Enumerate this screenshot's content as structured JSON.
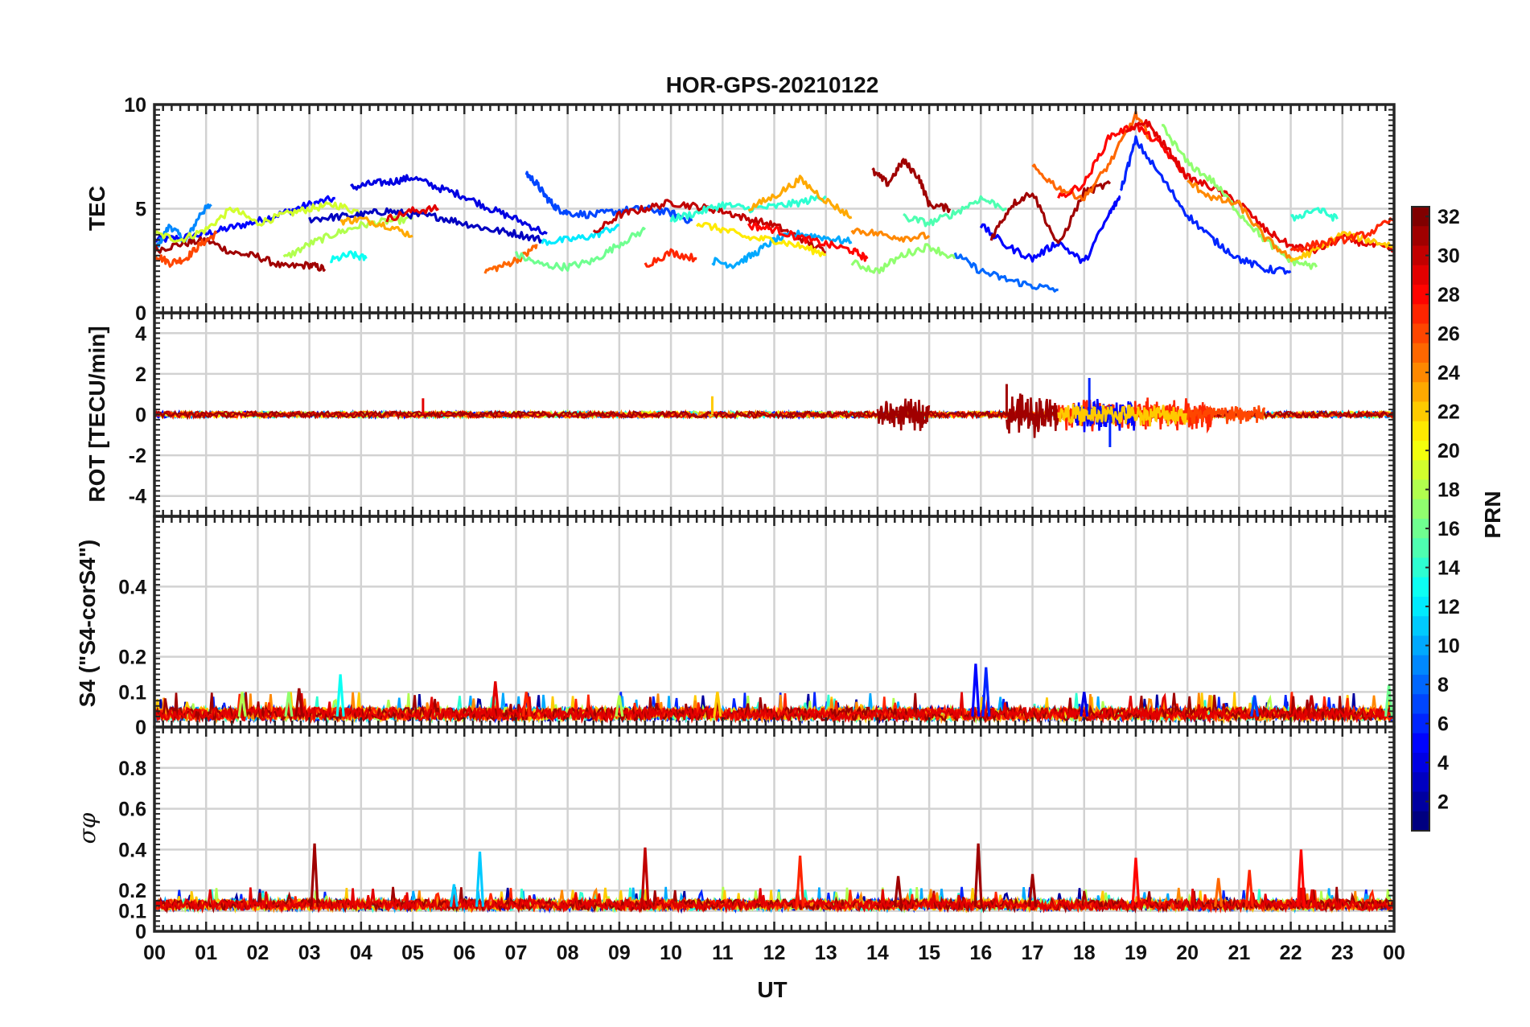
{
  "chart_data": {
    "type": "line",
    "title": "HOR-GPS-20210122",
    "xlabel": "UT",
    "x_ticks": [
      "00",
      "01",
      "02",
      "03",
      "04",
      "05",
      "06",
      "07",
      "08",
      "09",
      "10",
      "11",
      "12",
      "13",
      "14",
      "15",
      "16",
      "17",
      "18",
      "19",
      "20",
      "21",
      "22",
      "23",
      "00"
    ],
    "xlim": [
      0,
      24
    ],
    "grid": true,
    "colorbar": {
      "label": "PRN",
      "range": [
        1,
        32
      ],
      "ticks": [
        "2",
        "4",
        "6",
        "8",
        "10",
        "12",
        "14",
        "16",
        "18",
        "20",
        "22",
        "24",
        "26",
        "28",
        "30",
        "32"
      ],
      "colormap": "jet"
    },
    "panels": [
      {
        "id": "tec",
        "ylabel": "TEC",
        "ylim": [
          0,
          10
        ],
        "yticks": [
          "0",
          "5",
          "10"
        ],
        "series": [
          {
            "prn": 5,
            "x": [
              0.0,
              0.5,
              1.0,
              1.5,
              2.0,
              2.5,
              3.0,
              3.5
            ],
            "y": [
              3.5,
              3.6,
              3.8,
              4.1,
              4.4,
              4.8,
              5.2,
              5.5
            ]
          },
          {
            "prn": 9,
            "x": [
              0.0,
              0.3,
              0.6,
              0.9,
              1.1
            ],
            "y": [
              3.0,
              4.2,
              3.4,
              4.8,
              5.2
            ]
          },
          {
            "prn": 31,
            "x": [
              0.0,
              0.5,
              1.0,
              1.5,
              2.0,
              2.5,
              3.0,
              3.3
            ],
            "y": [
              3.0,
              3.3,
              3.5,
              2.9,
              2.7,
              2.2,
              2.3,
              2.1
            ]
          },
          {
            "prn": 19,
            "x": [
              0.0,
              0.5,
              1.0,
              1.5,
              2.0,
              2.5,
              3.0,
              3.5,
              4.0
            ],
            "y": [
              3.8,
              3.5,
              4.0,
              5.0,
              4.3,
              4.7,
              5.0,
              5.2,
              4.8
            ]
          },
          {
            "prn": 26,
            "x": [
              0.0,
              0.3,
              0.6,
              0.9,
              1.2
            ],
            "y": [
              2.8,
              2.4,
              2.6,
              3.3,
              3.8
            ]
          },
          {
            "prn": 4,
            "x": [
              3.8,
              4.2,
              4.6,
              5.0,
              5.5,
              6.0,
              6.5,
              7.0,
              7.6
            ],
            "y": [
              6.0,
              6.2,
              6.3,
              6.5,
              6.0,
              5.6,
              5.0,
              4.5,
              3.8
            ]
          },
          {
            "prn": 18,
            "x": [
              2.5,
              3.0,
              3.5,
              4.0,
              4.5,
              5.0
            ],
            "y": [
              2.6,
              3.3,
              3.8,
              4.2,
              4.4,
              4.5
            ]
          },
          {
            "prn": 13,
            "x": [
              3.4,
              3.8,
              4.1
            ],
            "y": [
              2.5,
              2.8,
              2.6
            ]
          },
          {
            "prn": 3,
            "x": [
              3.0,
              3.5,
              4.0,
              4.5,
              5.0,
              5.5,
              6.0,
              6.5,
              7.0,
              7.5
            ],
            "y": [
              4.5,
              4.6,
              4.7,
              4.9,
              4.7,
              4.6,
              4.3,
              4.0,
              3.8,
              3.5
            ]
          },
          {
            "prn": 23,
            "x": [
              3.6,
              4.0,
              4.5,
              5.0
            ],
            "y": [
              4.4,
              4.5,
              4.2,
              3.7
            ]
          },
          {
            "prn": 29,
            "x": [
              4.5,
              5.0,
              5.5
            ],
            "y": [
              4.5,
              4.9,
              5.0
            ]
          },
          {
            "prn": 7,
            "x": [
              7.2,
              7.4,
              7.6,
              7.8,
              8.0,
              8.5,
              9.0,
              9.5,
              10.0,
              10.4
            ],
            "y": [
              6.7,
              6.2,
              5.5,
              5.0,
              4.8,
              4.7,
              4.9,
              5.0,
              4.8,
              4.4
            ]
          },
          {
            "prn": 25,
            "x": [
              6.4,
              6.8,
              7.2,
              7.4
            ],
            "y": [
              2.0,
              2.3,
              2.8,
              3.3
            ]
          },
          {
            "prn": 16,
            "x": [
              7.0,
              7.5,
              8.0,
              8.5,
              9.0,
              9.5
            ],
            "y": [
              2.8,
              2.3,
              2.2,
              2.5,
              3.3,
              4.0
            ]
          },
          {
            "prn": 12,
            "x": [
              7.5,
              8.0,
              8.5,
              9.0
            ],
            "y": [
              3.4,
              3.5,
              3.7,
              4.2
            ]
          },
          {
            "prn": 30,
            "x": [
              8.5,
              9.0,
              9.5,
              10.0,
              10.5,
              11.0,
              11.5,
              12.0,
              12.5,
              13.0
            ],
            "y": [
              3.8,
              4.7,
              5.0,
              5.3,
              5.1,
              4.9,
              4.5,
              4.2,
              3.6,
              2.9
            ]
          },
          {
            "prn": 27,
            "x": [
              9.5,
              10.0,
              10.5
            ],
            "y": [
              2.3,
              2.9,
              2.6
            ]
          },
          {
            "prn": 10,
            "x": [
              10.8,
              11.2,
              11.6,
              12.0,
              12.5,
              13.0,
              13.5
            ],
            "y": [
              2.5,
              2.3,
              2.8,
              3.5,
              3.8,
              3.6,
              3.4
            ]
          },
          {
            "prn": 14,
            "x": [
              10.0,
              10.5,
              11.0,
              11.5,
              12.0,
              12.5,
              13.0
            ],
            "y": [
              4.5,
              4.8,
              5.2,
              5.0,
              5.1,
              5.3,
              5.6
            ]
          },
          {
            "prn": 21,
            "x": [
              10.5,
              11.0,
              11.5,
              12.0,
              12.5,
              13.0
            ],
            "y": [
              4.3,
              4.0,
              3.6,
              3.5,
              3.2,
              2.8
            ]
          },
          {
            "prn": 23,
            "x": [
              11.5,
              12.0,
              12.5,
              13.0,
              13.5
            ],
            "y": [
              5.0,
              5.6,
              6.4,
              5.4,
              4.6
            ]
          },
          {
            "prn": 28,
            "x": [
              11.5,
              12.0,
              12.5,
              13.0,
              13.5,
              13.8
            ],
            "y": [
              4.2,
              4.0,
              3.6,
              3.3,
              3.0,
              2.6
            ]
          },
          {
            "prn": 17,
            "x": [
              13.5,
              14.0,
              14.5,
              15.0,
              15.5
            ],
            "y": [
              2.4,
              2.0,
              2.8,
              3.2,
              2.6
            ]
          },
          {
            "prn": 31,
            "x": [
              13.9,
              14.2,
              14.5,
              14.8,
              15.0,
              15.4
            ],
            "y": [
              6.8,
              6.2,
              7.3,
              6.5,
              5.2,
              5.0
            ]
          },
          {
            "prn": 24,
            "x": [
              13.5,
              14.0,
              14.5,
              15.0
            ],
            "y": [
              4.0,
              3.8,
              3.6,
              3.7
            ]
          },
          {
            "prn": 8,
            "x": [
              15.5,
              16.0,
              16.5,
              17.0,
              17.5
            ],
            "y": [
              2.8,
              2.0,
              1.6,
              1.3,
              1.1
            ]
          },
          {
            "prn": 15,
            "x": [
              14.5,
              15.0,
              15.5,
              16.0,
              16.5
            ],
            "y": [
              4.6,
              4.3,
              4.8,
              5.5,
              5.0
            ]
          },
          {
            "prn": 5,
            "x": [
              16.0,
              16.5,
              17.0,
              17.5,
              18.0,
              18.5,
              18.7
            ],
            "y": [
              4.2,
              3.2,
              2.6,
              3.4,
              2.4,
              4.8,
              5.6
            ]
          },
          {
            "prn": 31,
            "x": [
              16.2,
              16.6,
              17.0,
              17.5,
              18.0,
              18.5
            ],
            "y": [
              3.6,
              5.2,
              5.8,
              3.2,
              5.8,
              6.2
            ]
          },
          {
            "prn": 25,
            "x": [
              17.0,
              17.5,
              18.0,
              18.5,
              19.0,
              19.3
            ],
            "y": [
              7.0,
              6.0,
              5.5,
              7.2,
              9.5,
              8.3
            ]
          },
          {
            "prn": 28,
            "x": [
              17.5,
              18.0,
              18.5,
              19.0,
              19.5,
              20.0
            ],
            "y": [
              5.5,
              6.2,
              8.5,
              9.0,
              8.0,
              6.5
            ]
          },
          {
            "prn": 6,
            "x": [
              18.7,
              19.0,
              19.5,
              20.0,
              20.5,
              21.0,
              21.5,
              22.0
            ],
            "y": [
              5.8,
              8.3,
              6.5,
              4.7,
              3.5,
              2.6,
              2.1,
              2.0
            ]
          },
          {
            "prn": 29,
            "x": [
              18.8,
              19.2,
              19.6,
              20.0,
              20.5,
              21.0,
              21.5,
              22.0,
              22.5,
              23.0,
              23.5,
              24.0
            ],
            "y": [
              8.6,
              9.2,
              7.9,
              6.5,
              6.0,
              5.3,
              4.0,
              3.2,
              3.0,
              3.6,
              3.3,
              3.0
            ]
          },
          {
            "prn": 17,
            "x": [
              19.5,
              20.0,
              20.5,
              21.0,
              21.5,
              22.0,
              22.5
            ],
            "y": [
              9.0,
              7.2,
              6.3,
              4.8,
              3.5,
              2.5,
              2.2
            ]
          },
          {
            "prn": 24,
            "x": [
              20.0,
              20.5,
              21.0,
              21.5,
              22.0
            ],
            "y": [
              6.3,
              5.5,
              5.2,
              3.6,
              2.6
            ]
          },
          {
            "prn": 14,
            "x": [
              22.0,
              22.5,
              22.9
            ],
            "y": [
              4.5,
              5.0,
              4.5
            ]
          },
          {
            "prn": 22,
            "x": [
              22.0,
              22.5,
              23.0,
              23.5,
              24.0
            ],
            "y": [
              2.5,
              3.0,
              3.8,
              3.5,
              3.2
            ]
          },
          {
            "prn": 27,
            "x": [
              22.0,
              22.5,
              23.0,
              23.5,
              24.0
            ],
            "y": [
              3.0,
              3.3,
              3.5,
              3.8,
              4.5
            ]
          }
        ]
      },
      {
        "id": "rot",
        "ylabel": "ROT [TECU/min]",
        "ylim": [
          -5,
          5
        ],
        "yticks": [
          "-4",
          "-2",
          "0",
          "2",
          "4"
        ],
        "noise": [
          {
            "prn": 31,
            "x": [
              14.0,
              15.0
            ],
            "amp": 0.9
          },
          {
            "prn": 31,
            "x": [
              16.5,
              17.5
            ],
            "amp": 1.2
          },
          {
            "prn": 27,
            "x": [
              17.5,
              20.5
            ],
            "amp": 0.9
          },
          {
            "prn": 5,
            "x": [
              17.8,
              19.0
            ],
            "amp": 1.0
          },
          {
            "prn": 22,
            "x": [
              17.5,
              20.0
            ],
            "amp": 0.6
          },
          {
            "prn": 26,
            "x": [
              20.0,
              21.5
            ],
            "amp": 0.6
          }
        ],
        "baseline_amp": 0.15,
        "spikes": [
          {
            "prn": 29,
            "x": 5.2,
            "y": 0.8
          },
          {
            "prn": 22,
            "x": 10.8,
            "y": 0.9
          },
          {
            "prn": 6,
            "x": 18.1,
            "y": 1.8
          },
          {
            "prn": 6,
            "x": 18.5,
            "y": -1.6
          },
          {
            "prn": 31,
            "x": 16.5,
            "y": 1.5
          }
        ]
      },
      {
        "id": "s4",
        "ylabel": "S4 (\"S4-corS4\")",
        "ylim": [
          0,
          0.6
        ],
        "yticks": [
          "0",
          "0.1",
          "0.2",
          "0.4"
        ],
        "baseline": 0.03,
        "spikes": [
          {
            "prn": 13,
            "x": 3.6,
            "y": 0.15
          },
          {
            "prn": 18,
            "x": 1.7,
            "y": 0.1
          },
          {
            "prn": 17,
            "x": 2.6,
            "y": 0.1
          },
          {
            "prn": 31,
            "x": 2.8,
            "y": 0.11
          },
          {
            "prn": 29,
            "x": 6.6,
            "y": 0.13
          },
          {
            "prn": 27,
            "x": 7.2,
            "y": 0.1
          },
          {
            "prn": 18,
            "x": 9.0,
            "y": 0.09
          },
          {
            "prn": 22,
            "x": 10.9,
            "y": 0.1
          },
          {
            "prn": 5,
            "x": 15.9,
            "y": 0.18
          },
          {
            "prn": 6,
            "x": 16.1,
            "y": 0.17
          },
          {
            "prn": 4,
            "x": 18.0,
            "y": 0.1
          },
          {
            "prn": 7,
            "x": 21.3,
            "y": 0.09
          },
          {
            "prn": 30,
            "x": 22.4,
            "y": 0.09
          },
          {
            "prn": 16,
            "x": 23.9,
            "y": 0.12
          }
        ]
      },
      {
        "id": "sigma",
        "ylabel": "σφ",
        "ylim": [
          0,
          1
        ],
        "yticks": [
          "0",
          "0.1",
          "0.2",
          "0.4",
          "0.6",
          "0.8"
        ],
        "baseline": 0.12,
        "spikes": [
          {
            "prn": 31,
            "x": 3.1,
            "y": 0.43
          },
          {
            "prn": 11,
            "x": 5.8,
            "y": 0.23
          },
          {
            "prn": 11,
            "x": 6.3,
            "y": 0.39
          },
          {
            "prn": 30,
            "x": 9.5,
            "y": 0.41
          },
          {
            "prn": 27,
            "x": 12.5,
            "y": 0.37
          },
          {
            "prn": 31,
            "x": 14.4,
            "y": 0.27
          },
          {
            "prn": 31,
            "x": 15.95,
            "y": 0.43
          },
          {
            "prn": 31,
            "x": 17.0,
            "y": 0.28
          },
          {
            "prn": 28,
            "x": 19.0,
            "y": 0.36
          },
          {
            "prn": 25,
            "x": 20.6,
            "y": 0.26
          },
          {
            "prn": 27,
            "x": 21.2,
            "y": 0.3
          },
          {
            "prn": 28,
            "x": 22.2,
            "y": 0.4
          }
        ]
      }
    ]
  }
}
